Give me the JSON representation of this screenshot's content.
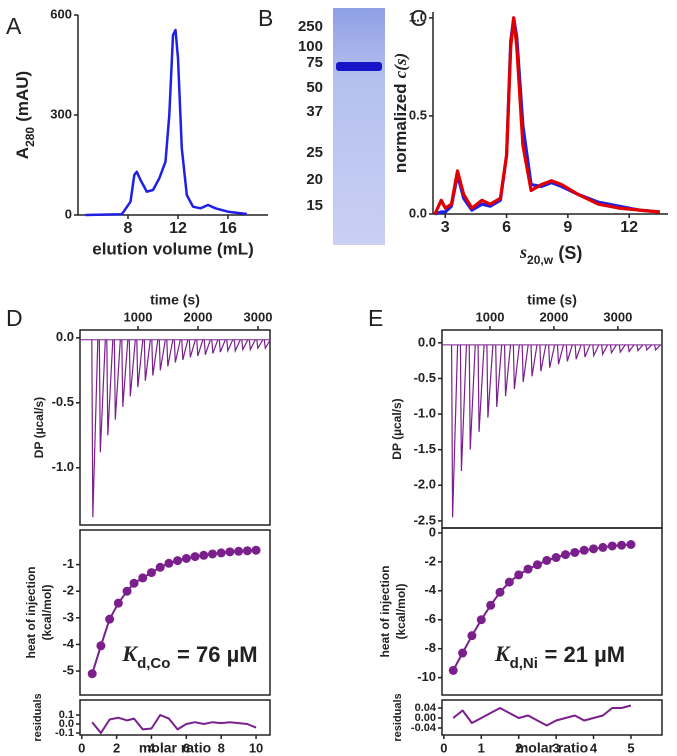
{
  "chart_data": [
    {
      "type": "line",
      "panel": "A",
      "color": "#1f1fe6",
      "xlabel": "elution volume (mL)",
      "ylabel": {
        "text": "A",
        "subscript": "280",
        "unit": "(mAU)"
      },
      "x": [
        4.6,
        7.5,
        8.2,
        8.5,
        8.7,
        9.0,
        9.5,
        10.0,
        10.5,
        11.0,
        11.3,
        11.6,
        11.8,
        12.0,
        12.3,
        12.7,
        13.2,
        13.8,
        14.4,
        15.0,
        16.0,
        17.5
      ],
      "values": [
        0,
        2,
        40,
        120,
        130,
        105,
        70,
        75,
        110,
        160,
        300,
        540,
        555,
        470,
        200,
        60,
        25,
        20,
        30,
        20,
        10,
        3
      ],
      "xlim": [
        4,
        19.2
      ],
      "xticks": [
        8,
        12,
        16
      ],
      "ylim": [
        0,
        600
      ],
      "yticks": [
        0,
        300,
        600
      ]
    },
    {
      "type": "gel",
      "panel": "B",
      "marker_labels": [
        250,
        100,
        75,
        50,
        37,
        25,
        20,
        15
      ]
    },
    {
      "type": "line",
      "panel": "C",
      "xlabel": {
        "italic": "s",
        "subscript": "20,w",
        "unit": "(S)"
      },
      "ylabel": {
        "text": "normalized",
        "italic": "c(s)"
      },
      "x": [
        2.5,
        2.8,
        3.0,
        3.3,
        3.6,
        3.9,
        4.3,
        4.8,
        5.2,
        5.7,
        6.0,
        6.2,
        6.35,
        6.5,
        6.8,
        7.2,
        7.7,
        8.2,
        8.7,
        9.5,
        10.5,
        11.5,
        12.5,
        13.5
      ],
      "series": [
        {
          "color": "#1f1fe6",
          "values": [
            0,
            0.01,
            0.01,
            0.04,
            0.2,
            0.08,
            0.02,
            0.05,
            0.04,
            0.07,
            0.3,
            0.88,
            1.0,
            0.9,
            0.45,
            0.15,
            0.14,
            0.16,
            0.14,
            0.1,
            0.06,
            0.04,
            0.02,
            0.01
          ]
        },
        {
          "color": "#e00000",
          "values": [
            0,
            0.07,
            0.03,
            0.05,
            0.22,
            0.1,
            0.03,
            0.07,
            0.05,
            0.08,
            0.3,
            0.85,
            1.0,
            0.85,
            0.35,
            0.12,
            0.15,
            0.17,
            0.15,
            0.1,
            0.05,
            0.03,
            0.02,
            0.01
          ]
        }
      ],
      "xlim": [
        2.4,
        13.9
      ],
      "xticks": [
        3,
        6,
        9,
        12
      ],
      "ylim": [
        0,
        1.03
      ],
      "yticks": [
        {
          "value": 0,
          "label": "0.0"
        },
        0.5,
        {
          "value": 1,
          "label": "1.0"
        }
      ]
    },
    {
      "type": "thermogram",
      "panel": "D",
      "color": "#7a1f8c",
      "xlabel": "time (s)",
      "ylabel": "DP (µcal/s)",
      "x": [
        230,
        355,
        480,
        605,
        730,
        855,
        980,
        1105,
        1230,
        1355,
        1480,
        1605,
        1730,
        1855,
        1980,
        2105,
        2230,
        2355,
        2480,
        2605,
        2730,
        2855,
        2980,
        3105
      ],
      "values": [
        -1.38,
        -0.88,
        -0.75,
        -0.63,
        -0.53,
        -0.45,
        -0.38,
        -0.33,
        -0.29,
        -0.25,
        -0.22,
        -0.19,
        -0.17,
        -0.15,
        -0.14,
        -0.13,
        -0.12,
        -0.11,
        -0.1,
        -0.1,
        -0.09,
        -0.09,
        -0.08,
        -0.08
      ],
      "xlim": [
        33,
        3200
      ],
      "xticks": [
        1000,
        2000,
        3000
      ],
      "ylim": [
        -1.44,
        0.06
      ],
      "yticks": [
        {
          "value": 0,
          "label": "0.0"
        },
        -0.5,
        {
          "value": -1,
          "label": "-1.0"
        }
      ]
    },
    {
      "type": "scatter",
      "color": "#7a1f8c",
      "ylabel": [
        "heat of injection",
        "(kcal/mol)"
      ],
      "annotation": {
        "italic": "K",
        "subscript": "d,Co",
        "text": "= 76 µM"
      },
      "x": [
        0.6,
        1.1,
        1.6,
        2.1,
        2.6,
        3.0,
        3.5,
        4.0,
        4.5,
        5.0,
        5.5,
        6.0,
        6.5,
        7.0,
        7.5,
        8.0,
        8.5,
        9.0,
        9.5,
        10.0
      ],
      "values": [
        -5.1,
        -4.05,
        -3.05,
        -2.45,
        -2.0,
        -1.7,
        -1.5,
        -1.3,
        -1.1,
        -0.95,
        -0.85,
        -0.77,
        -0.7,
        -0.65,
        -0.6,
        -0.56,
        -0.52,
        -0.5,
        -0.48,
        -0.46
      ],
      "xlim": [
        -0.1,
        10.8
      ],
      "ylim": [
        -5.9,
        0.3
      ],
      "yticks": [
        -5,
        -4,
        -3,
        -2,
        -1
      ]
    },
    {
      "type": "line",
      "color": "#7a1f8c",
      "xlabel": "molar ratio",
      "ylabel": "residuals",
      "x": [
        0.6,
        1.1,
        1.6,
        2.1,
        2.6,
        3.0,
        3.5,
        4.0,
        4.5,
        5.0,
        5.5,
        6.0,
        6.5,
        7.0,
        7.5,
        8.0,
        8.5,
        9.0,
        9.5,
        10.0
      ],
      "values": [
        0.02,
        -0.1,
        0.05,
        0.07,
        0.04,
        0.06,
        -0.06,
        -0.05,
        0.1,
        0.06,
        -0.06,
        0.0,
        0.02,
        0.0,
        0.02,
        0.01,
        0.02,
        0.01,
        0.0,
        -0.04
      ],
      "xlim": [
        -0.1,
        10.8
      ],
      "xticks": [
        0,
        2,
        4,
        6,
        8,
        10
      ],
      "ylim": [
        -0.122,
        0.267
      ],
      "yticks": [
        0.1,
        {
          "value": 0,
          "label": "0.0"
        },
        -0.1
      ]
    },
    {
      "type": "thermogram",
      "panel": "E",
      "color": "#7a1f8c",
      "xlabel": "time (s)",
      "ylabel": "DP (µcal/s)",
      "x": [
        400,
        538,
        676,
        814,
        952,
        1090,
        1228,
        1366,
        1504,
        1642,
        1780,
        1918,
        2056,
        2194,
        2332,
        2470,
        2608,
        2746,
        2884,
        3022,
        3160,
        3298,
        3436,
        3574
      ],
      "values": [
        -2.45,
        -1.8,
        -1.5,
        -1.25,
        -1.05,
        -0.9,
        -0.75,
        -0.65,
        -0.55,
        -0.47,
        -0.4,
        -0.35,
        -0.3,
        -0.26,
        -0.23,
        -0.2,
        -0.18,
        -0.16,
        -0.14,
        -0.13,
        -0.12,
        -0.11,
        -0.1,
        -0.1
      ],
      "xlim": [
        250,
        3690
      ],
      "xticks": [
        1000,
        2000,
        3000
      ],
      "ylim": [
        -2.6,
        0.18
      ],
      "yticks": [
        {
          "value": 0,
          "label": "0.0"
        },
        -0.5,
        {
          "value": -1,
          "label": "-1.0"
        },
        -1.5,
        {
          "value": -2,
          "label": "-2.0"
        },
        -2.5
      ]
    },
    {
      "type": "scatter",
      "color": "#7a1f8c",
      "ylabel": [
        "heat of injection",
        "(kcal/mol)"
      ],
      "annotation": {
        "italic": "K",
        "subscript": "d,Ni",
        "text": "= 21 µM"
      },
      "x": [
        0.25,
        0.5,
        0.75,
        1.0,
        1.25,
        1.5,
        1.75,
        2.0,
        2.25,
        2.5,
        2.75,
        3.0,
        3.25,
        3.5,
        3.75,
        4.0,
        4.25,
        4.5,
        4.75,
        5.0
      ],
      "values": [
        -9.5,
        -8.3,
        -7.1,
        -6.0,
        -5.0,
        -4.1,
        -3.4,
        -2.9,
        -2.5,
        -2.2,
        -1.9,
        -1.7,
        -1.5,
        -1.35,
        -1.2,
        -1.1,
        -1.0,
        -0.9,
        -0.85,
        -0.8
      ],
      "xlim": [
        -0.05,
        5.83
      ],
      "ylim": [
        -11.2,
        0.34
      ],
      "yticks": [
        0,
        -2,
        -4,
        -6,
        -8,
        -10
      ]
    },
    {
      "type": "line",
      "color": "#7a1f8c",
      "xlabel": "molar ratio",
      "ylabel": "residuals",
      "x": [
        0.25,
        0.5,
        0.75,
        1.0,
        1.25,
        1.5,
        1.75,
        2.0,
        2.25,
        2.5,
        2.75,
        3.0,
        3.25,
        3.5,
        3.75,
        4.0,
        4.25,
        4.5,
        4.75,
        5.0
      ],
      "values": [
        0.0,
        0.03,
        -0.02,
        0.0,
        0.02,
        0.04,
        0.02,
        0.0,
        0.01,
        -0.01,
        -0.03,
        -0.01,
        0.0,
        0.01,
        -0.01,
        0.0,
        0.01,
        0.04,
        0.04,
        0.05
      ],
      "xlim": [
        -0.05,
        5.83
      ],
      "xticks": [
        0,
        1,
        2,
        3,
        4,
        5
      ],
      "ylim": [
        -0.068,
        0.072
      ],
      "yticks": [
        0.04,
        {
          "value": 0,
          "label": "0.00"
        },
        -0.04
      ]
    }
  ]
}
